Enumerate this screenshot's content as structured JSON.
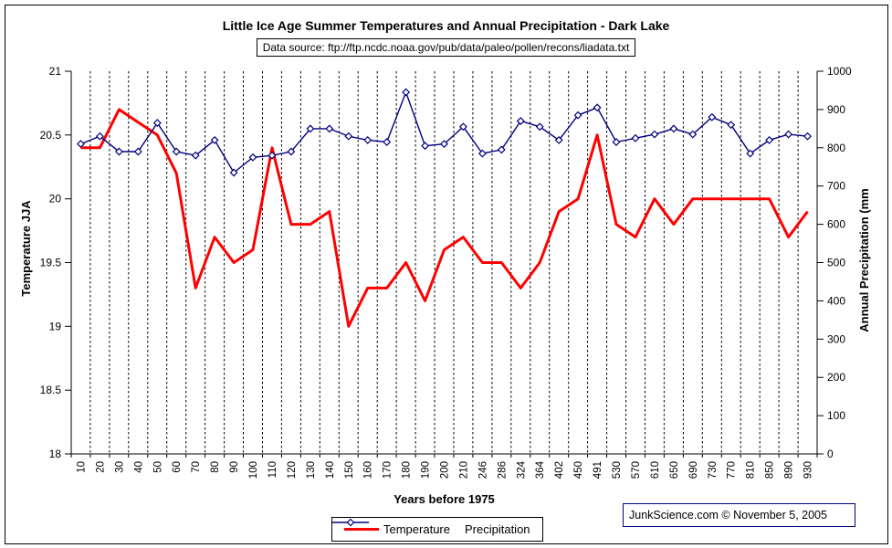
{
  "header": {
    "title": "Little Ice Age Summer Temperatures and Annual Precipitation - Dark Lake",
    "source": "Data source: ftp://ftp.ncdc.noaa.gov/pub/data/paleo/pollen/recons/liadata.txt"
  },
  "footer": {
    "credit": "JunkScience.com ©  November 5, 2005"
  },
  "legend": {
    "items": [
      {
        "label": "Temperature",
        "color": "#ff0000",
        "marker": "thick-line"
      },
      {
        "label": "Precipitation",
        "color": "#000080",
        "marker": "line-with-diamond"
      }
    ]
  },
  "chart_data": {
    "type": "line",
    "title": "Little Ice Age Summer Temperatures and Annual Precipitation - Dark Lake",
    "xlabel": "Years before 1975",
    "grid": "vertical-dashed",
    "legend_position": "bottom-center",
    "categories": [
      "10",
      "20",
      "30",
      "40",
      "50",
      "60",
      "70",
      "80",
      "90",
      "100",
      "110",
      "120",
      "130",
      "140",
      "150",
      "160",
      "170",
      "180",
      "190",
      "200",
      "210",
      "246",
      "286",
      "324",
      "364",
      "402",
      "450",
      "491",
      "530",
      "570",
      "610",
      "650",
      "690",
      "730",
      "770",
      "810",
      "850",
      "890",
      "930"
    ],
    "y_left": {
      "label": "Temperature JJA",
      "min": 18,
      "max": 21,
      "ticks": [
        "21",
        "20.5",
        "20",
        "19.5",
        "19",
        "18.5",
        "18"
      ]
    },
    "y_right": {
      "label": "Annual Precipitation (mm",
      "min": 0,
      "max": 1000,
      "ticks": [
        "1000",
        "900",
        "800",
        "700",
        "600",
        "500",
        "400",
        "300",
        "200",
        "100",
        "0"
      ]
    },
    "series": [
      {
        "name": "Temperature",
        "axis": "left",
        "color": "#ff0000",
        "values": [
          20.4,
          20.4,
          20.7,
          20.6,
          20.5,
          20.2,
          19.3,
          19.7,
          19.5,
          19.6,
          20.4,
          19.8,
          19.8,
          19.9,
          19.0,
          19.3,
          19.3,
          19.5,
          19.2,
          19.6,
          19.7,
          19.5,
          19.5,
          19.3,
          19.5,
          19.9,
          20.0,
          20.5,
          19.8,
          19.7,
          20.0,
          19.8,
          20.0,
          20.0,
          20.0,
          20.0,
          20.0,
          19.7,
          19.9
        ]
      },
      {
        "name": "Precipitation",
        "axis": "right",
        "color": "#000080",
        "values": [
          810,
          830,
          790,
          790,
          865,
          790,
          780,
          820,
          735,
          775,
          780,
          790,
          850,
          850,
          830,
          820,
          815,
          945,
          805,
          810,
          855,
          785,
          795,
          870,
          855,
          820,
          885,
          905,
          815,
          825,
          835,
          850,
          835,
          880,
          860,
          785,
          820,
          835,
          830
        ]
      }
    ]
  }
}
